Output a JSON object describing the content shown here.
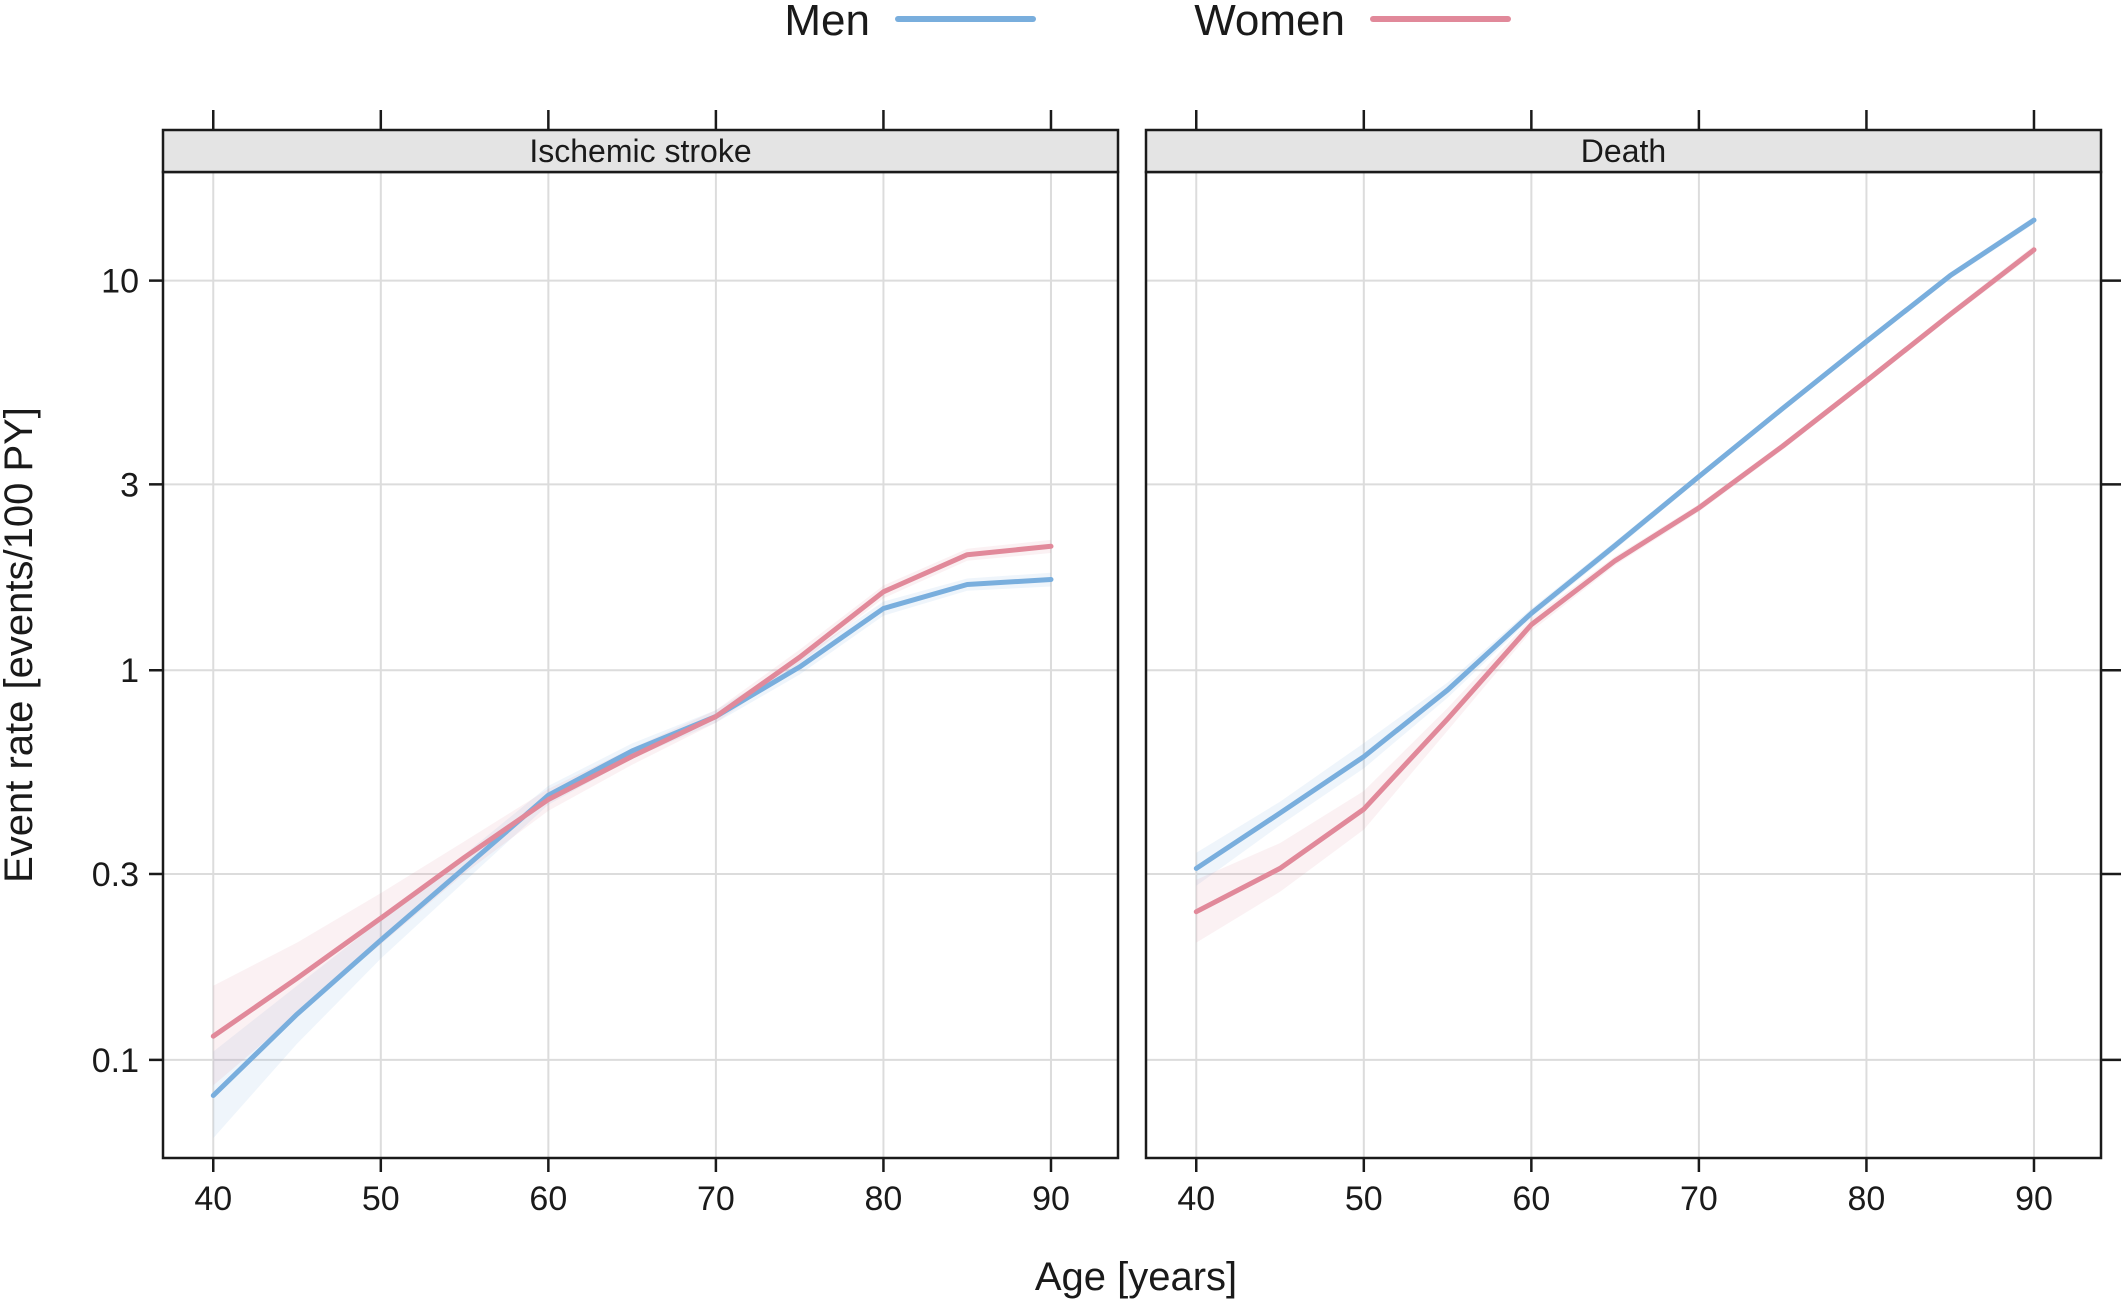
{
  "chart_data": {
    "type": "line",
    "xlabel": "Age [years]",
    "ylabel": "Event rate [events/100 PY]",
    "y_scale": "log",
    "xlim": [
      37,
      94
    ],
    "ylim": [
      0.056,
      19
    ],
    "x_ticks": [
      "40",
      "50",
      "60",
      "70",
      "80",
      "90"
    ],
    "y_ticks": [
      {
        "value": 0.1,
        "label": "0.1"
      },
      {
        "value": 0.3,
        "label": "0.3"
      },
      {
        "value": 1,
        "label": "1"
      },
      {
        "value": 3,
        "label": "3"
      },
      {
        "value": 10,
        "label": "10"
      }
    ],
    "grid": true,
    "legend": {
      "position": "top",
      "entries": [
        {
          "name": "Men",
          "color": "#79aedd"
        },
        {
          "name": "Women",
          "color": "#e1899a"
        }
      ]
    },
    "panels": [
      {
        "title": "Ischemic stroke",
        "x": [
          40,
          45,
          50,
          55,
          60,
          65,
          70,
          75,
          80,
          85,
          90
        ],
        "series": [
          {
            "name": "Men",
            "color": "#79aedd",
            "values": [
              0.081,
              0.131,
              0.203,
              0.311,
              0.478,
              0.621,
              0.761,
              1.02,
              1.44,
              1.66,
              1.71
            ],
            "lower": [
              0.063,
              0.11,
              0.182,
              0.287,
              0.452,
              0.594,
              0.733,
              0.975,
              1.38,
              1.6,
              1.64
            ],
            "upper": [
              0.105,
              0.155,
              0.228,
              0.337,
              0.505,
              0.649,
              0.79,
              1.07,
              1.5,
              1.72,
              1.78
            ]
          },
          {
            "name": "Women",
            "color": "#e1899a",
            "values": [
              0.115,
              0.162,
              0.231,
              0.331,
              0.466,
              0.601,
              0.761,
              1.08,
              1.59,
              1.98,
              2.08
            ],
            "lower": [
              0.086,
              0.131,
              0.198,
              0.301,
              0.436,
              0.572,
              0.733,
              1.04,
              1.53,
              1.91,
              2.0
            ],
            "upper": [
              0.155,
              0.2,
              0.268,
              0.364,
              0.496,
              0.631,
              0.79,
              1.13,
              1.65,
              2.05,
              2.16
            ]
          }
        ]
      },
      {
        "title": "Death",
        "x": [
          40,
          45,
          50,
          55,
          60,
          65,
          70,
          75,
          80,
          85,
          90
        ],
        "series": [
          {
            "name": "Men",
            "color": "#79aedd",
            "values": [
              0.31,
              0.43,
              0.6,
              0.89,
              1.4,
              2.09,
              3.14,
              4.7,
              6.98,
              10.3,
              14.3
            ],
            "lower": [
              0.28,
              0.4,
              0.56,
              0.85,
              1.36,
              2.04,
              3.08,
              4.62,
              6.88,
              10.1,
              14.0
            ],
            "upper": [
              0.34,
              0.46,
              0.65,
              0.93,
              1.44,
              2.14,
              3.2,
              4.78,
              7.08,
              10.5,
              14.6
            ]
          },
          {
            "name": "Women",
            "color": "#e1899a",
            "values": [
              0.24,
              0.31,
              0.44,
              0.75,
              1.31,
              1.91,
              2.61,
              3.76,
              5.53,
              8.19,
              12.0
            ],
            "lower": [
              0.2,
              0.27,
              0.39,
              0.7,
              1.26,
              1.86,
              2.55,
              3.68,
              5.42,
              8.02,
              11.7
            ],
            "upper": [
              0.29,
              0.36,
              0.49,
              0.8,
              1.36,
              1.96,
              2.67,
              3.84,
              5.64,
              8.36,
              12.3
            ]
          }
        ]
      }
    ]
  }
}
